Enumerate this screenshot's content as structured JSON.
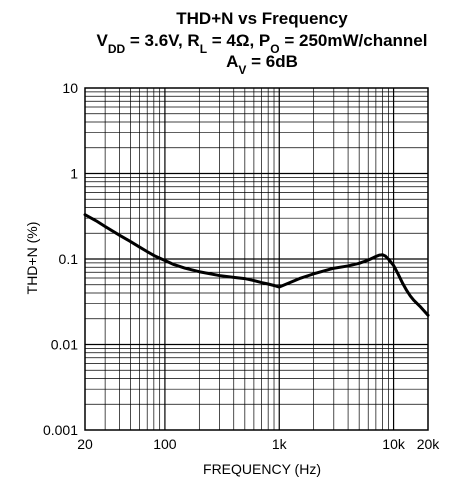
{
  "chart_data": {
    "type": "line",
    "title": {
      "line1": "THD+N vs Frequency",
      "line2_parts": [
        {
          "t": "V",
          "sub": false
        },
        {
          "t": "DD",
          "sub": true
        },
        {
          "t": " = 3.6V, R",
          "sub": false
        },
        {
          "t": "L",
          "sub": true
        },
        {
          "t": " = 4Ω, P",
          "sub": false
        },
        {
          "t": "O",
          "sub": true
        },
        {
          "t": " = 250mW/channel",
          "sub": false
        }
      ],
      "line3_parts": [
        {
          "t": "A",
          "sub": false
        },
        {
          "t": "V",
          "sub": true
        },
        {
          "t": " = 6dB",
          "sub": false
        }
      ]
    },
    "xlabel": "FREQUENCY (Hz)",
    "ylabel": "THD+N (%)",
    "x_scale": "log",
    "y_scale": "log",
    "xlim": [
      20,
      20000
    ],
    "ylim": [
      0.001,
      10
    ],
    "grid": true,
    "x_ticks": [
      {
        "value": 20,
        "label": "20"
      },
      {
        "value": 100,
        "label": "100"
      },
      {
        "value": 1000,
        "label": "1k"
      },
      {
        "value": 10000,
        "label": "10k"
      },
      {
        "value": 20000,
        "label": "20k"
      }
    ],
    "y_ticks": [
      {
        "value": 0.001,
        "label": "0.001"
      },
      {
        "value": 0.01,
        "label": "0.01"
      },
      {
        "value": 0.1,
        "label": "0.1"
      },
      {
        "value": 1,
        "label": "1"
      },
      {
        "value": 10,
        "label": "10"
      }
    ],
    "series": [
      {
        "x": [
          20,
          25,
          30,
          40,
          50,
          60,
          70,
          80,
          100,
          120,
          150,
          200,
          300,
          400,
          500,
          600,
          700,
          800,
          900,
          1000,
          1200,
          1500,
          2000,
          2500,
          3000,
          4000,
          5000,
          6000,
          7000,
          7500,
          8000,
          8500,
          9000,
          10000,
          11000,
          12000,
          13000,
          14000,
          15000,
          17000,
          20000
        ],
        "y": [
          0.33,
          0.28,
          0.24,
          0.19,
          0.16,
          0.138,
          0.122,
          0.11,
          0.096,
          0.086,
          0.078,
          0.071,
          0.064,
          0.061,
          0.059,
          0.056,
          0.053,
          0.051,
          0.049,
          0.047,
          0.052,
          0.059,
          0.067,
          0.073,
          0.078,
          0.083,
          0.089,
          0.097,
          0.107,
          0.111,
          0.112,
          0.108,
          0.1,
          0.084,
          0.066,
          0.052,
          0.043,
          0.037,
          0.033,
          0.028,
          0.022
        ]
      }
    ]
  }
}
